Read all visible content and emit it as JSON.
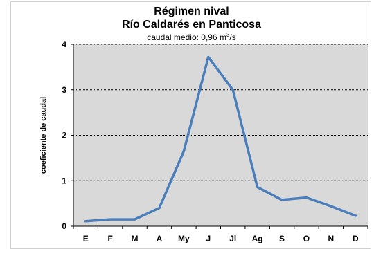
{
  "chart_data": {
    "type": "line",
    "title": "Régimen nival",
    "subtitle_line": "Río Caldarés en Panticosa",
    "caption_prefix": "caudal medio: 0,96 m",
    "caption_sup": "3",
    "caption_suffix": "/s",
    "ylabel": "coeficiente de caudal",
    "xlabel": "",
    "categories": [
      "E",
      "F",
      "M",
      "A",
      "My",
      "J",
      "Jl",
      "Ag",
      "S",
      "O",
      "N",
      "D"
    ],
    "series": [
      {
        "values": [
          0.11,
          0.15,
          0.15,
          0.4,
          1.65,
          3.72,
          3.0,
          0.86,
          0.58,
          0.63,
          0.44,
          0.23
        ]
      }
    ],
    "ylim": [
      0,
      4
    ],
    "yticks": [
      0,
      1,
      2,
      3,
      4
    ],
    "grid": true,
    "legend": "none",
    "line_color": "#4a7ebb",
    "plot_bg": "#d9d9d9",
    "gridline_color": "#000000"
  }
}
